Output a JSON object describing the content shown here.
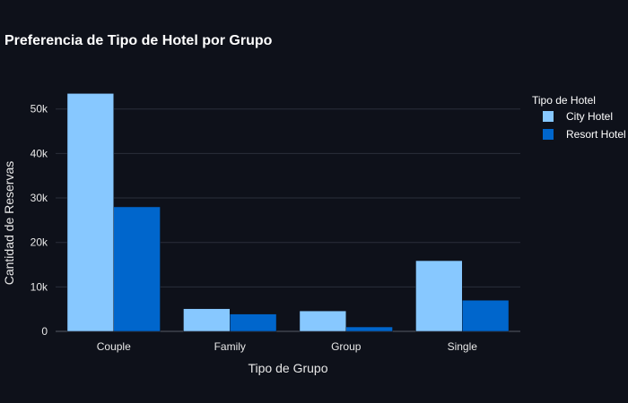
{
  "chart_data": {
    "type": "bar",
    "title": "Preferencia de Tipo de Hotel por Grupo",
    "xlabel": "Tipo de Grupo",
    "ylabel": "Cantidad de Reservas",
    "categories": [
      "Couple",
      "Family",
      "Group",
      "Single"
    ],
    "series": [
      {
        "name": "City Hotel",
        "values": [
          53500,
          5100,
          4600,
          15900
        ],
        "color": "#87c8ff"
      },
      {
        "name": "Resort Hotel",
        "values": [
          28000,
          3900,
          1000,
          7000
        ],
        "color": "#0066cc"
      }
    ],
    "ylim": [
      0,
      58000
    ],
    "yticks": [
      0,
      10000,
      20000,
      30000,
      40000,
      50000
    ],
    "ytick_labels": [
      "0",
      "10k",
      "20k",
      "30k",
      "40k",
      "50k"
    ],
    "grid": true,
    "legend": {
      "title": "Tipo de Hotel",
      "position": "top-right"
    }
  }
}
